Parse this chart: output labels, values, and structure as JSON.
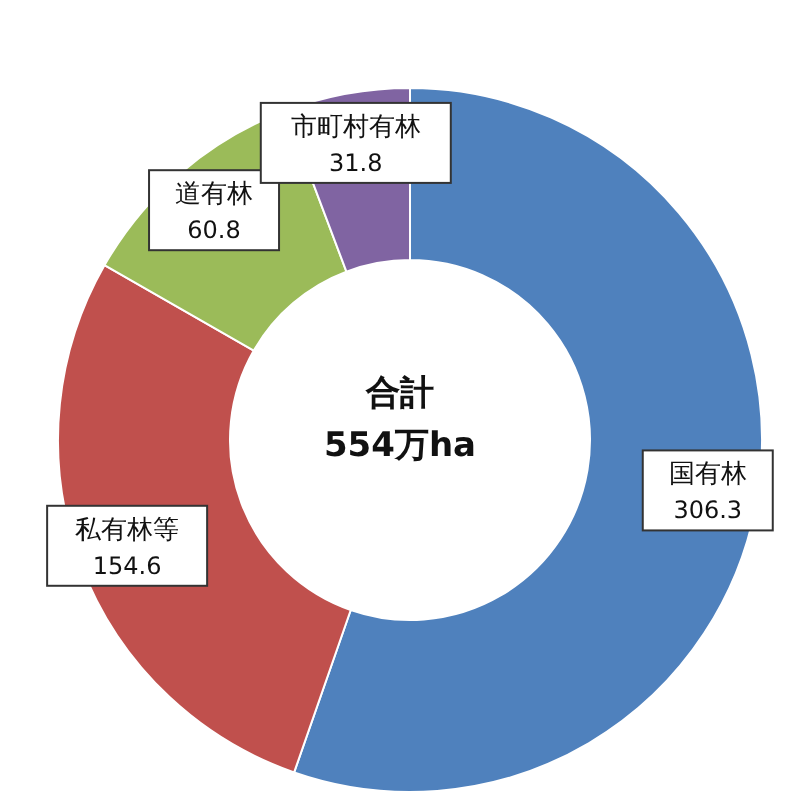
{
  "chart_data": {
    "type": "donut",
    "categories": [
      "国有林",
      "私有林等",
      "道有林",
      "市町村有林"
    ],
    "values": [
      306.3,
      154.6,
      60.8,
      31.8
    ],
    "colors": [
      "#4f81bd",
      "#c0504d",
      "#9bbb59",
      "#8064a2"
    ],
    "data_labels": true,
    "annotations": [
      "合計",
      "554万ha"
    ]
  }
}
